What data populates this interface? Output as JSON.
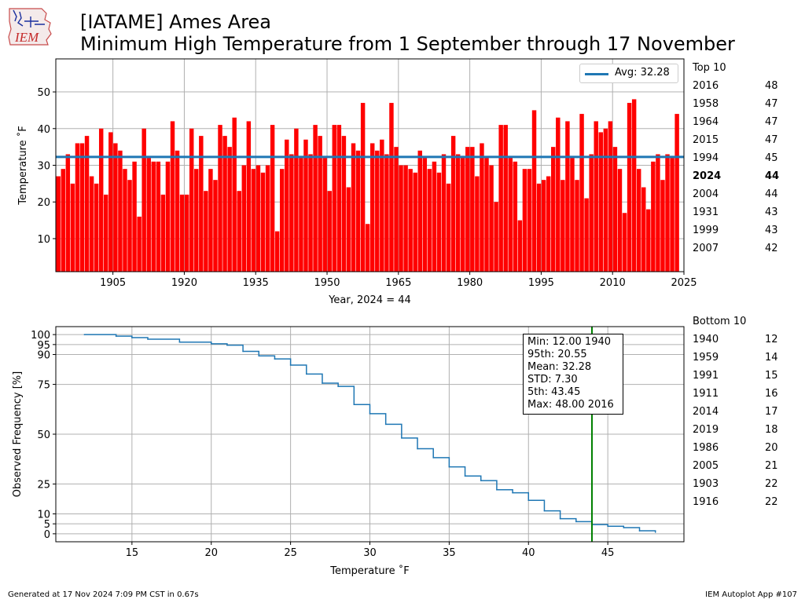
{
  "logo": {
    "text": "IEM"
  },
  "title": {
    "line1": "[IATAME] Ames Area",
    "line2": "Minimum High Temperature from 1 September through 17 November"
  },
  "footer": {
    "left": "Generated at 17 Nov 2024 7:09 PM CST in 0.67s",
    "right": "IEM Autoplot App #107"
  },
  "top_panel": {
    "heading": "Top 10"
  },
  "bottom_panel": {
    "heading": "Bottom 10"
  },
  "legend": {
    "label": "Avg: 32.28"
  },
  "stats": {
    "min": "Min: 12.00 1940",
    "p95": "95th: 20.55",
    "mean": "Mean: 32.28",
    "std": "STD: 7.30",
    "p5": "5th: 43.45",
    "max": "Max: 48.00 2016"
  },
  "top10": [
    {
      "year": "2016",
      "value": "48",
      "highlight": false
    },
    {
      "year": "1958",
      "value": "47",
      "highlight": false
    },
    {
      "year": "1964",
      "value": "47",
      "highlight": false
    },
    {
      "year": "2015",
      "value": "47",
      "highlight": false
    },
    {
      "year": "1994",
      "value": "45",
      "highlight": false
    },
    {
      "year": "2024",
      "value": "44",
      "highlight": true
    },
    {
      "year": "2004",
      "value": "44",
      "highlight": false
    },
    {
      "year": "1931",
      "value": "43",
      "highlight": false
    },
    {
      "year": "1999",
      "value": "43",
      "highlight": false
    },
    {
      "year": "2007",
      "value": "42",
      "highlight": false
    }
  ],
  "bottom10": [
    {
      "year": "1940",
      "value": "12"
    },
    {
      "year": "1959",
      "value": "14"
    },
    {
      "year": "1991",
      "value": "15"
    },
    {
      "year": "1911",
      "value": "16"
    },
    {
      "year": "2014",
      "value": "17"
    },
    {
      "year": "2019",
      "value": "18"
    },
    {
      "year": "1986",
      "value": "20"
    },
    {
      "year": "2005",
      "value": "21"
    },
    {
      "year": "1903",
      "value": "22"
    },
    {
      "year": "1916",
      "value": "22"
    }
  ],
  "chart_data": [
    {
      "type": "bar",
      "xlabel": "Year, 2024 = 44",
      "ylabel": "Temperature ˚F",
      "xlim": [
        1893,
        2025
      ],
      "ylim": [
        1,
        59
      ],
      "xticks": [
        1905,
        1920,
        1935,
        1950,
        1965,
        1980,
        1995,
        2010,
        2025
      ],
      "xtick_labels": [
        "1905",
        "1920",
        "1935",
        "1950",
        "1965",
        "1980",
        "1995",
        "2010",
        "2025"
      ],
      "yticks": [
        10,
        20,
        30,
        40,
        50
      ],
      "ytick_labels": [
        "10",
        "20",
        "30",
        "40",
        "50"
      ],
      "grid": true,
      "legend_position": "top-right",
      "bar_color": "#ff0000",
      "highlight_color": "#008000",
      "highlight_year": 2024,
      "avg_line": {
        "value": 32.28,
        "color": "#1f77b4",
        "label": "Avg: 32.28"
      },
      "start_year": 1893,
      "values": [
        27,
        29,
        33,
        25,
        36,
        36,
        38,
        27,
        25,
        40,
        22,
        39,
        36,
        34,
        29,
        26,
        31,
        16,
        40,
        32,
        31,
        31,
        22,
        31,
        42,
        34,
        22,
        22,
        40,
        29,
        38,
        23,
        29,
        26,
        41,
        38,
        35,
        43,
        23,
        30,
        42,
        29,
        30,
        28,
        30,
        41,
        12,
        29,
        37,
        33,
        40,
        32,
        37,
        33,
        41,
        38,
        32,
        23,
        41,
        41,
        38,
        24,
        36,
        34,
        47,
        14,
        36,
        34,
        37,
        33,
        47,
        35,
        30,
        30,
        29,
        28,
        34,
        32,
        29,
        31,
        28,
        33,
        25,
        38,
        33,
        32,
        35,
        35,
        27,
        36,
        32,
        30,
        20,
        41,
        41,
        32,
        31,
        15,
        29,
        29,
        45,
        25,
        26,
        27,
        35,
        43,
        26,
        42,
        32,
        26,
        44,
        21,
        33,
        42,
        39,
        40,
        42,
        35,
        29,
        17,
        47,
        48,
        29,
        24,
        18,
        31,
        33,
        26,
        33,
        32,
        44
      ]
    },
    {
      "type": "line",
      "xlabel": "Temperature ˚F",
      "ylabel": "Observed Frequency [%]",
      "xlim": [
        10.2,
        49.8
      ],
      "ylim": [
        -4,
        104
      ],
      "xticks": [
        15,
        20,
        25,
        30,
        35,
        40,
        45
      ],
      "xtick_labels": [
        "15",
        "20",
        "25",
        "30",
        "35",
        "40",
        "45"
      ],
      "yticks": [
        0,
        5,
        10,
        25,
        50,
        75,
        90,
        95,
        100
      ],
      "ytick_labels": [
        "0",
        "5",
        "10",
        "25",
        "50",
        "75",
        "90",
        "95",
        "100"
      ],
      "grid": true,
      "line_color": "#1f77b4",
      "marker_line": {
        "value": 44,
        "color": "#008000"
      },
      "x": [
        12,
        14,
        15,
        16,
        18,
        20,
        21,
        22,
        23,
        24,
        25,
        26,
        27,
        28,
        29,
        30,
        31,
        32,
        33,
        34,
        35,
        36,
        37,
        38,
        39,
        40,
        41,
        42,
        43,
        44,
        45,
        46,
        47,
        48
      ],
      "y": [
        100,
        99.2,
        98.5,
        97.7,
        96.2,
        95.4,
        94.7,
        91.6,
        89.3,
        87.8,
        84.7,
        80.2,
        75.6,
        74.0,
        64.9,
        60.3,
        55.0,
        48.1,
        42.7,
        38.2,
        33.6,
        29.0,
        26.7,
        22.1,
        20.6,
        16.8,
        11.5,
        7.6,
        6.1,
        4.6,
        3.8,
        3.1,
        1.5,
        0.8
      ]
    }
  ]
}
